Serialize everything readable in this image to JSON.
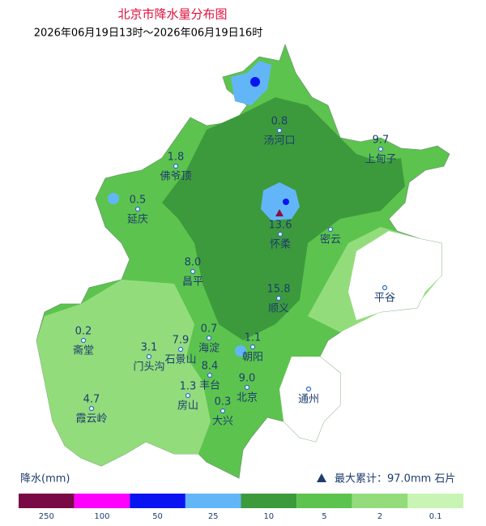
{
  "header": {
    "title": "北京市降水量分布图",
    "subtitle": "2026年06月19日13时～2026年06月19日16时"
  },
  "stations": [
    {
      "name": "汤河口",
      "value": "0.8"
    },
    {
      "name": "上甸子",
      "value": "9.7"
    },
    {
      "name": "佛爷顶",
      "value": "1.8"
    },
    {
      "name": "延庆",
      "value": "0.5"
    },
    {
      "name": "怀柔",
      "value": "13.6"
    },
    {
      "name": "密云"
    },
    {
      "name": "昌平",
      "value": "8.0"
    },
    {
      "name": "顺义",
      "value": "15.8"
    },
    {
      "name": "平谷"
    },
    {
      "name": "斋堂",
      "value": "0.2"
    },
    {
      "name": "门头沟",
      "value": "3.1"
    },
    {
      "name": "石景山",
      "value": "7.9"
    },
    {
      "name": "海淀",
      "value": "0.7"
    },
    {
      "name": "朝阳",
      "value": "1.1"
    },
    {
      "name": "丰台",
      "value": "8.4"
    },
    {
      "name": "房山",
      "value": "1.3"
    },
    {
      "name": "北京",
      "value": "9.0"
    },
    {
      "name": "大兴",
      "value": "0.3"
    },
    {
      "name": "通州"
    },
    {
      "name": "霞云岭",
      "value": "4.7"
    }
  ],
  "legend": {
    "title": "降水(mm)",
    "items": [
      {
        "label": "250",
        "color": "#7a0a45"
      },
      {
        "label": "100",
        "color": "#ff00ff"
      },
      {
        "label": "50",
        "color": "#0a14f0"
      },
      {
        "label": "25",
        "color": "#62b6f8"
      },
      {
        "label": "10",
        "color": "#3c9a3c"
      },
      {
        "label": "5",
        "color": "#5cc44e"
      },
      {
        "label": "2",
        "color": "#93dc7c"
      },
      {
        "label": "0.1",
        "color": "#c8f5b4"
      }
    ]
  },
  "max_note": "最大累计：97.0mm 石片"
}
